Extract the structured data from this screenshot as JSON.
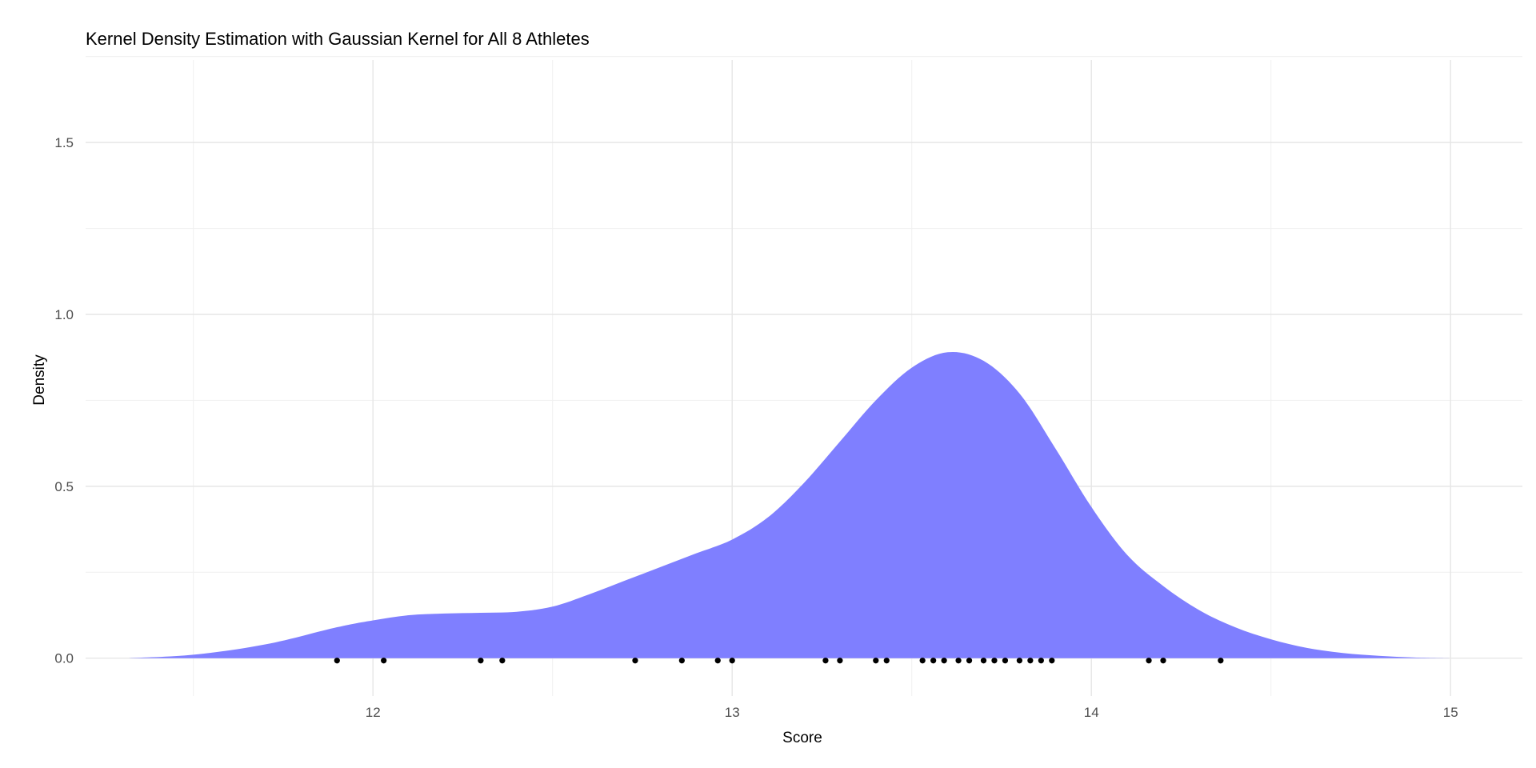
{
  "chart_data": {
    "type": "area",
    "title": "Kernel Density Estimation with Gaussian Kernel for All 8 Athletes",
    "xlabel": "Score",
    "ylabel": "Density",
    "xlim": [
      11.2,
      15.2
    ],
    "ylim": [
      -0.11,
      1.74
    ],
    "x_ticks": [
      12,
      13,
      14,
      15
    ],
    "x_tick_labels": [
      "12",
      "13",
      "14",
      "15"
    ],
    "x_minor_ticks": [
      11.5,
      12.5,
      13.5,
      14.5
    ],
    "y_ticks": [
      0.0,
      0.5,
      1.0,
      1.5
    ],
    "y_tick_labels": [
      "0.0",
      "0.5",
      "1.0",
      "1.5"
    ],
    "y_minor_ticks": [
      0.25,
      0.75,
      1.25,
      1.75
    ],
    "grid": true,
    "fill_color": "#7f7fff",
    "point_color": "#000000",
    "density_curve": {
      "x": [
        11.32,
        11.5,
        11.7,
        11.9,
        12.0,
        12.1,
        12.2,
        12.3,
        12.4,
        12.5,
        12.6,
        12.7,
        12.8,
        12.9,
        13.0,
        13.1,
        13.2,
        13.3,
        13.4,
        13.5,
        13.6,
        13.7,
        13.8,
        13.9,
        14.0,
        14.1,
        14.2,
        14.3,
        14.4,
        14.5,
        14.6,
        14.7,
        14.8,
        14.9,
        15.0,
        15.01
      ],
      "y": [
        0.0,
        0.01,
        0.04,
        0.09,
        0.11,
        0.125,
        0.13,
        0.132,
        0.135,
        0.15,
        0.185,
        0.225,
        0.265,
        0.305,
        0.345,
        0.41,
        0.51,
        0.63,
        0.75,
        0.845,
        0.89,
        0.865,
        0.77,
        0.61,
        0.44,
        0.3,
        0.21,
        0.14,
        0.09,
        0.055,
        0.03,
        0.015,
        0.007,
        0.002,
        0.0,
        0.0
      ]
    },
    "points": [
      11.9,
      12.03,
      12.3,
      12.36,
      12.73,
      12.86,
      12.96,
      13.0,
      13.26,
      13.3,
      13.4,
      13.43,
      13.53,
      13.56,
      13.59,
      13.63,
      13.66,
      13.7,
      13.73,
      13.76,
      13.8,
      13.83,
      13.86,
      13.89,
      14.16,
      14.2,
      14.36
    ]
  }
}
